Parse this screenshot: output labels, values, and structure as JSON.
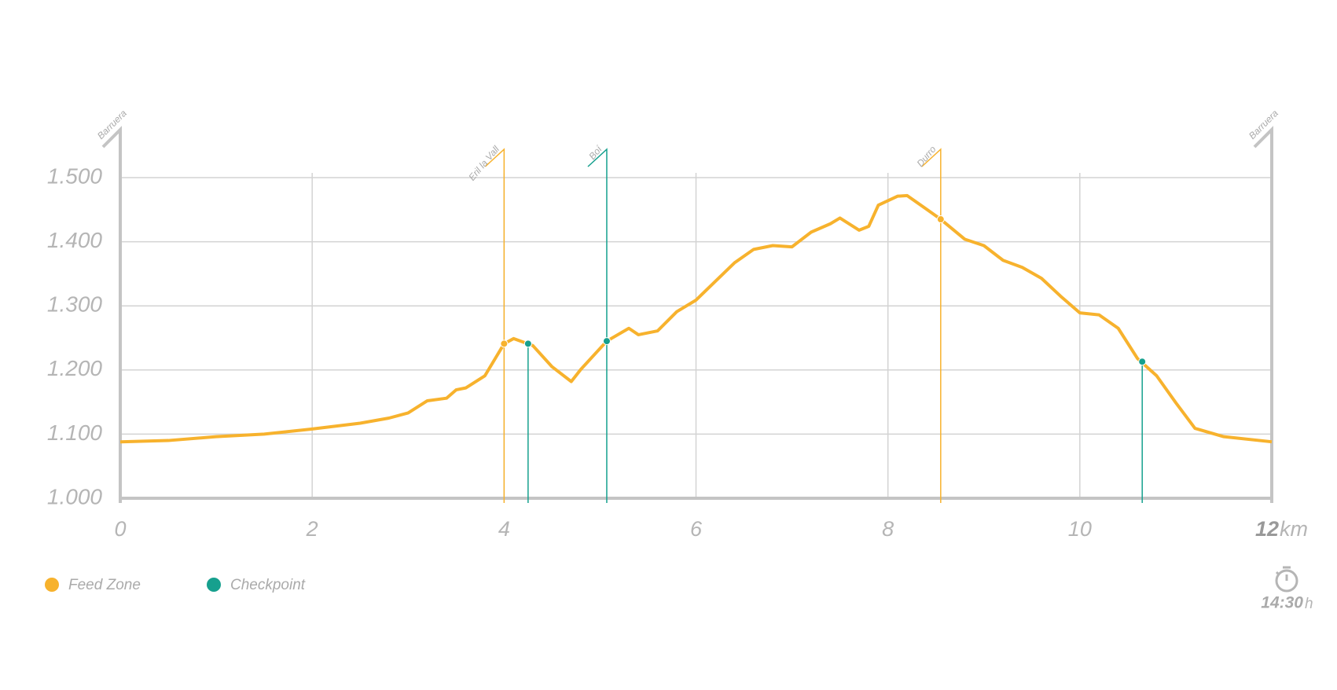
{
  "chart_data": {
    "type": "line",
    "color": "#f7b22d",
    "x": [
      0,
      0.5,
      1,
      1.5,
      2,
      2.5,
      2.8,
      3,
      3.2,
      3.4,
      3.5,
      3.6,
      3.8,
      4,
      4.1,
      4.3,
      4.5,
      4.7,
      4.8,
      5.07,
      5.3,
      5.4,
      5.6,
      5.8,
      6,
      6.2,
      6.4,
      6.6,
      6.8,
      7,
      7.2,
      7.4,
      7.5,
      7.7,
      7.8,
      7.9,
      8.1,
      8.2,
      8.4,
      8.55,
      8.8,
      9,
      9.2,
      9.4,
      9.6,
      9.8,
      10,
      10.2,
      10.4,
      10.6,
      10.8,
      11,
      11.2,
      11.5,
      12
    ],
    "values": [
      1088,
      1090,
      1096,
      1100,
      1108,
      1117,
      1125,
      1133,
      1152,
      1156,
      1169,
      1172,
      1191,
      1241,
      1249,
      1238,
      1205,
      1182,
      1201,
      1245,
      1265,
      1255,
      1261,
      1291,
      1309,
      1338,
      1367,
      1388,
      1394,
      1392,
      1415,
      1428,
      1437,
      1418,
      1424,
      1457,
      1471,
      1472,
      1451,
      1435,
      1404,
      1394,
      1371,
      1360,
      1343,
      1315,
      1289,
      1286,
      1265,
      1218,
      1191,
      1149,
      1109,
      1096,
      1088
    ],
    "xlim": [
      0,
      12
    ],
    "ylim": [
      1000,
      1500
    ],
    "xticks": [
      0,
      2,
      4,
      6,
      8,
      10,
      12
    ],
    "x_unit": "km",
    "yticks": [
      {
        "value": 1000,
        "label": "1.000"
      },
      {
        "value": 1100,
        "label": "1.100"
      },
      {
        "value": 1200,
        "label": "1.200"
      },
      {
        "value": 1300,
        "label": "1.300"
      },
      {
        "value": 1400,
        "label": "1.400"
      },
      {
        "value": 1500,
        "label": "1.500"
      }
    ],
    "grid": true,
    "endpoints": [
      {
        "name": "Barruera",
        "x": 0
      },
      {
        "name": "Barruera",
        "x": 12
      }
    ],
    "feed_zones": {
      "label": "Feed Zone",
      "color": "#f7b22d",
      "points": [
        {
          "name": "Eril la Vall",
          "x": 4.0,
          "elevation": 1241
        },
        {
          "name": "Durro",
          "x": 8.55,
          "elevation": 1435
        }
      ]
    },
    "checkpoints": {
      "label": "Checkpoint",
      "color": "#16a08e",
      "points": [
        {
          "x": 4.25,
          "elevation": 1241
        },
        {
          "name": "Boí",
          "x": 5.07,
          "elevation": 1245
        },
        {
          "x": 10.65,
          "elevation": 1213
        }
      ]
    },
    "duration": "14:30",
    "duration_unit": "h"
  }
}
